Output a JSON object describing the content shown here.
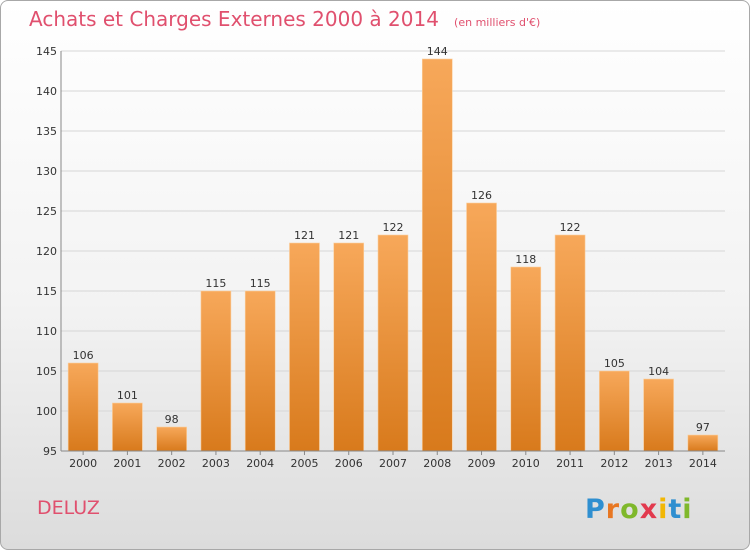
{
  "title": "Achats et Charges Externes 2000 à 2014",
  "subtitle": "(en milliers d'€)",
  "city": "DELUZ",
  "brand": "Proxiti",
  "colors": {
    "title": "#e0506e",
    "bar_top": "#f7a85a",
    "bar_bottom": "#d87a1c"
  },
  "chart_data": {
    "type": "bar",
    "title": "Achats et Charges Externes 2000 à 2014",
    "subtitle": "(en milliers d'€)",
    "categories": [
      "2000",
      "2001",
      "2002",
      "2003",
      "2004",
      "2005",
      "2006",
      "2007",
      "2008",
      "2009",
      "2010",
      "2011",
      "2012",
      "2013",
      "2014"
    ],
    "values": [
      106,
      101,
      98,
      115,
      115,
      121,
      121,
      122,
      144,
      126,
      118,
      122,
      105,
      104,
      97
    ],
    "ylim": [
      95,
      145
    ],
    "yticks": [
      95,
      100,
      105,
      110,
      115,
      120,
      125,
      130,
      135,
      140,
      145
    ],
    "grid": true,
    "legend": "none"
  }
}
